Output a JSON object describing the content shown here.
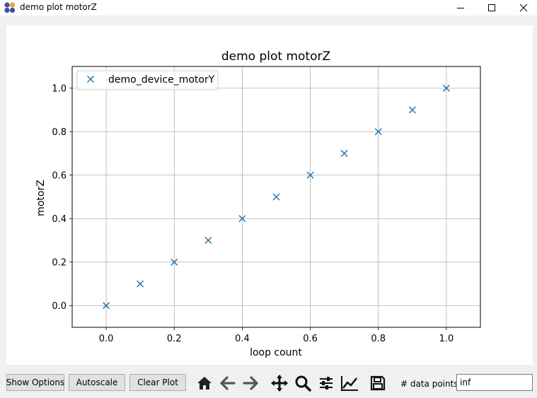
{
  "window": {
    "title": "demo plot motorZ",
    "app_icon": "app-logo-icon",
    "controls": [
      "minimize-icon",
      "maximize-icon",
      "close-icon"
    ]
  },
  "toolbar": {
    "show_options_label": "Show Options",
    "autoscale_label": "Autoscale",
    "clear_plot_label": "Clear Plot",
    "tools": [
      "home-icon",
      "back-arrow-icon",
      "forward-arrow-icon",
      "pan-icon",
      "zoom-icon",
      "subplots-icon",
      "axes-lines-icon",
      "save-icon"
    ],
    "data_points_label": "# data points:",
    "data_points_value": "inf"
  },
  "colors": {
    "series": "#1f77b4",
    "grid": "#b0b0b0"
  },
  "chart_data": {
    "type": "scatter",
    "title": "demo plot motorZ",
    "xlabel": "loop count",
    "ylabel": "motorZ",
    "xlim": [
      -0.1,
      1.1
    ],
    "ylim": [
      -0.1,
      1.1
    ],
    "xticks": [
      "0.0",
      "0.2",
      "0.4",
      "0.6",
      "0.8",
      "1.0"
    ],
    "yticks": [
      "0.0",
      "0.2",
      "0.4",
      "0.6",
      "0.8",
      "1.0"
    ],
    "grid": true,
    "legend": "upper-left",
    "marker": "x",
    "series": [
      {
        "name": "demo_device_motorY",
        "x": [
          0.0,
          0.1,
          0.2,
          0.3,
          0.4,
          0.5,
          0.6,
          0.7,
          0.8,
          0.9,
          1.0
        ],
        "y": [
          0.0,
          0.1,
          0.2,
          0.3,
          0.4,
          0.5,
          0.6,
          0.7,
          0.8,
          0.9,
          1.0
        ]
      }
    ]
  }
}
